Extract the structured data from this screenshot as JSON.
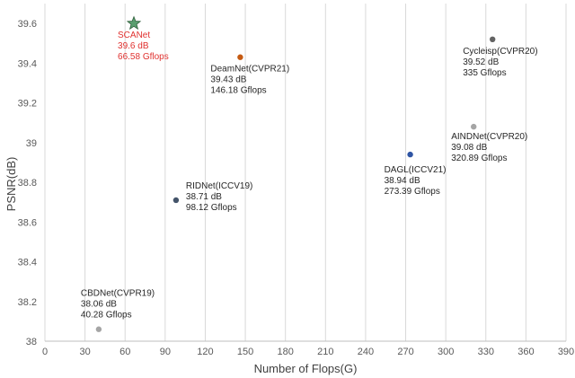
{
  "chart_data": {
    "type": "scatter",
    "title": "",
    "xlabel": "Number of Flops(G)",
    "ylabel": "PSNR(dB)",
    "xlim": [
      0,
      390
    ],
    "ylim": [
      38,
      39.7
    ],
    "xticks": [
      0,
      30,
      60,
      90,
      120,
      150,
      180,
      210,
      240,
      270,
      300,
      330,
      360,
      390
    ],
    "yticks": [
      38,
      38.2,
      38.4,
      38.6,
      38.8,
      39,
      39.2,
      39.4,
      39.6
    ],
    "ytick_labels": [
      "38",
      "38.2",
      "38.4",
      "38.6",
      "38.8",
      "39",
      "39.2",
      "39.4",
      "39.6"
    ],
    "grid": "vertical",
    "points": [
      {
        "name": "SCANet",
        "x": 66.58,
        "y": 39.6,
        "lines": [
          "SCANet",
          "39.6  dB",
          "66.58 Gflops"
        ],
        "marker": "star",
        "color": "#5a9e6f",
        "highlight": true
      },
      {
        "name": "DeamNet(CVPR21)",
        "x": 146.18,
        "y": 39.43,
        "lines": [
          "DeamNet(CVPR21)",
          "39.43 dB",
          "146.18 Gflops"
        ],
        "marker": "circle",
        "color": "#c55a11",
        "highlight": false
      },
      {
        "name": "Cycleisp(CVPR20)",
        "x": 335,
        "y": 39.52,
        "lines": [
          "Cycleisp(CVPR20)",
          "39.52 dB",
          "335 Gflops"
        ],
        "marker": "circle",
        "color": "#636363",
        "highlight": false
      },
      {
        "name": "AINDNet(CVPR20)",
        "x": 320.89,
        "y": 39.08,
        "lines": [
          "AINDNet(CVPR20)",
          "39.08 dB",
          "320.89 Gflops"
        ],
        "marker": "circle",
        "color": "#a5a5a5",
        "highlight": false
      },
      {
        "name": "DAGL(ICCV21)",
        "x": 273.39,
        "y": 38.94,
        "lines": [
          "DAGL(ICCV21)",
          "38.94 dB",
          "273.39 Gflops"
        ],
        "marker": "circle",
        "color": "#2f55a4",
        "highlight": false
      },
      {
        "name": "RIDNet(ICCV19)",
        "x": 98.12,
        "y": 38.71,
        "lines": [
          "RIDNet(ICCV19)",
          "38.71 dB",
          "98.12 Gflops"
        ],
        "marker": "circle",
        "color": "#44546a",
        "highlight": false
      },
      {
        "name": "CBDNet(CVPR19)",
        "x": 40.28,
        "y": 38.06,
        "lines": [
          "CBDNet(CVPR19)",
          "38.06 dB",
          "40.28 Gflops"
        ],
        "marker": "circle",
        "color": "#a5a5a5",
        "highlight": false
      }
    ]
  }
}
